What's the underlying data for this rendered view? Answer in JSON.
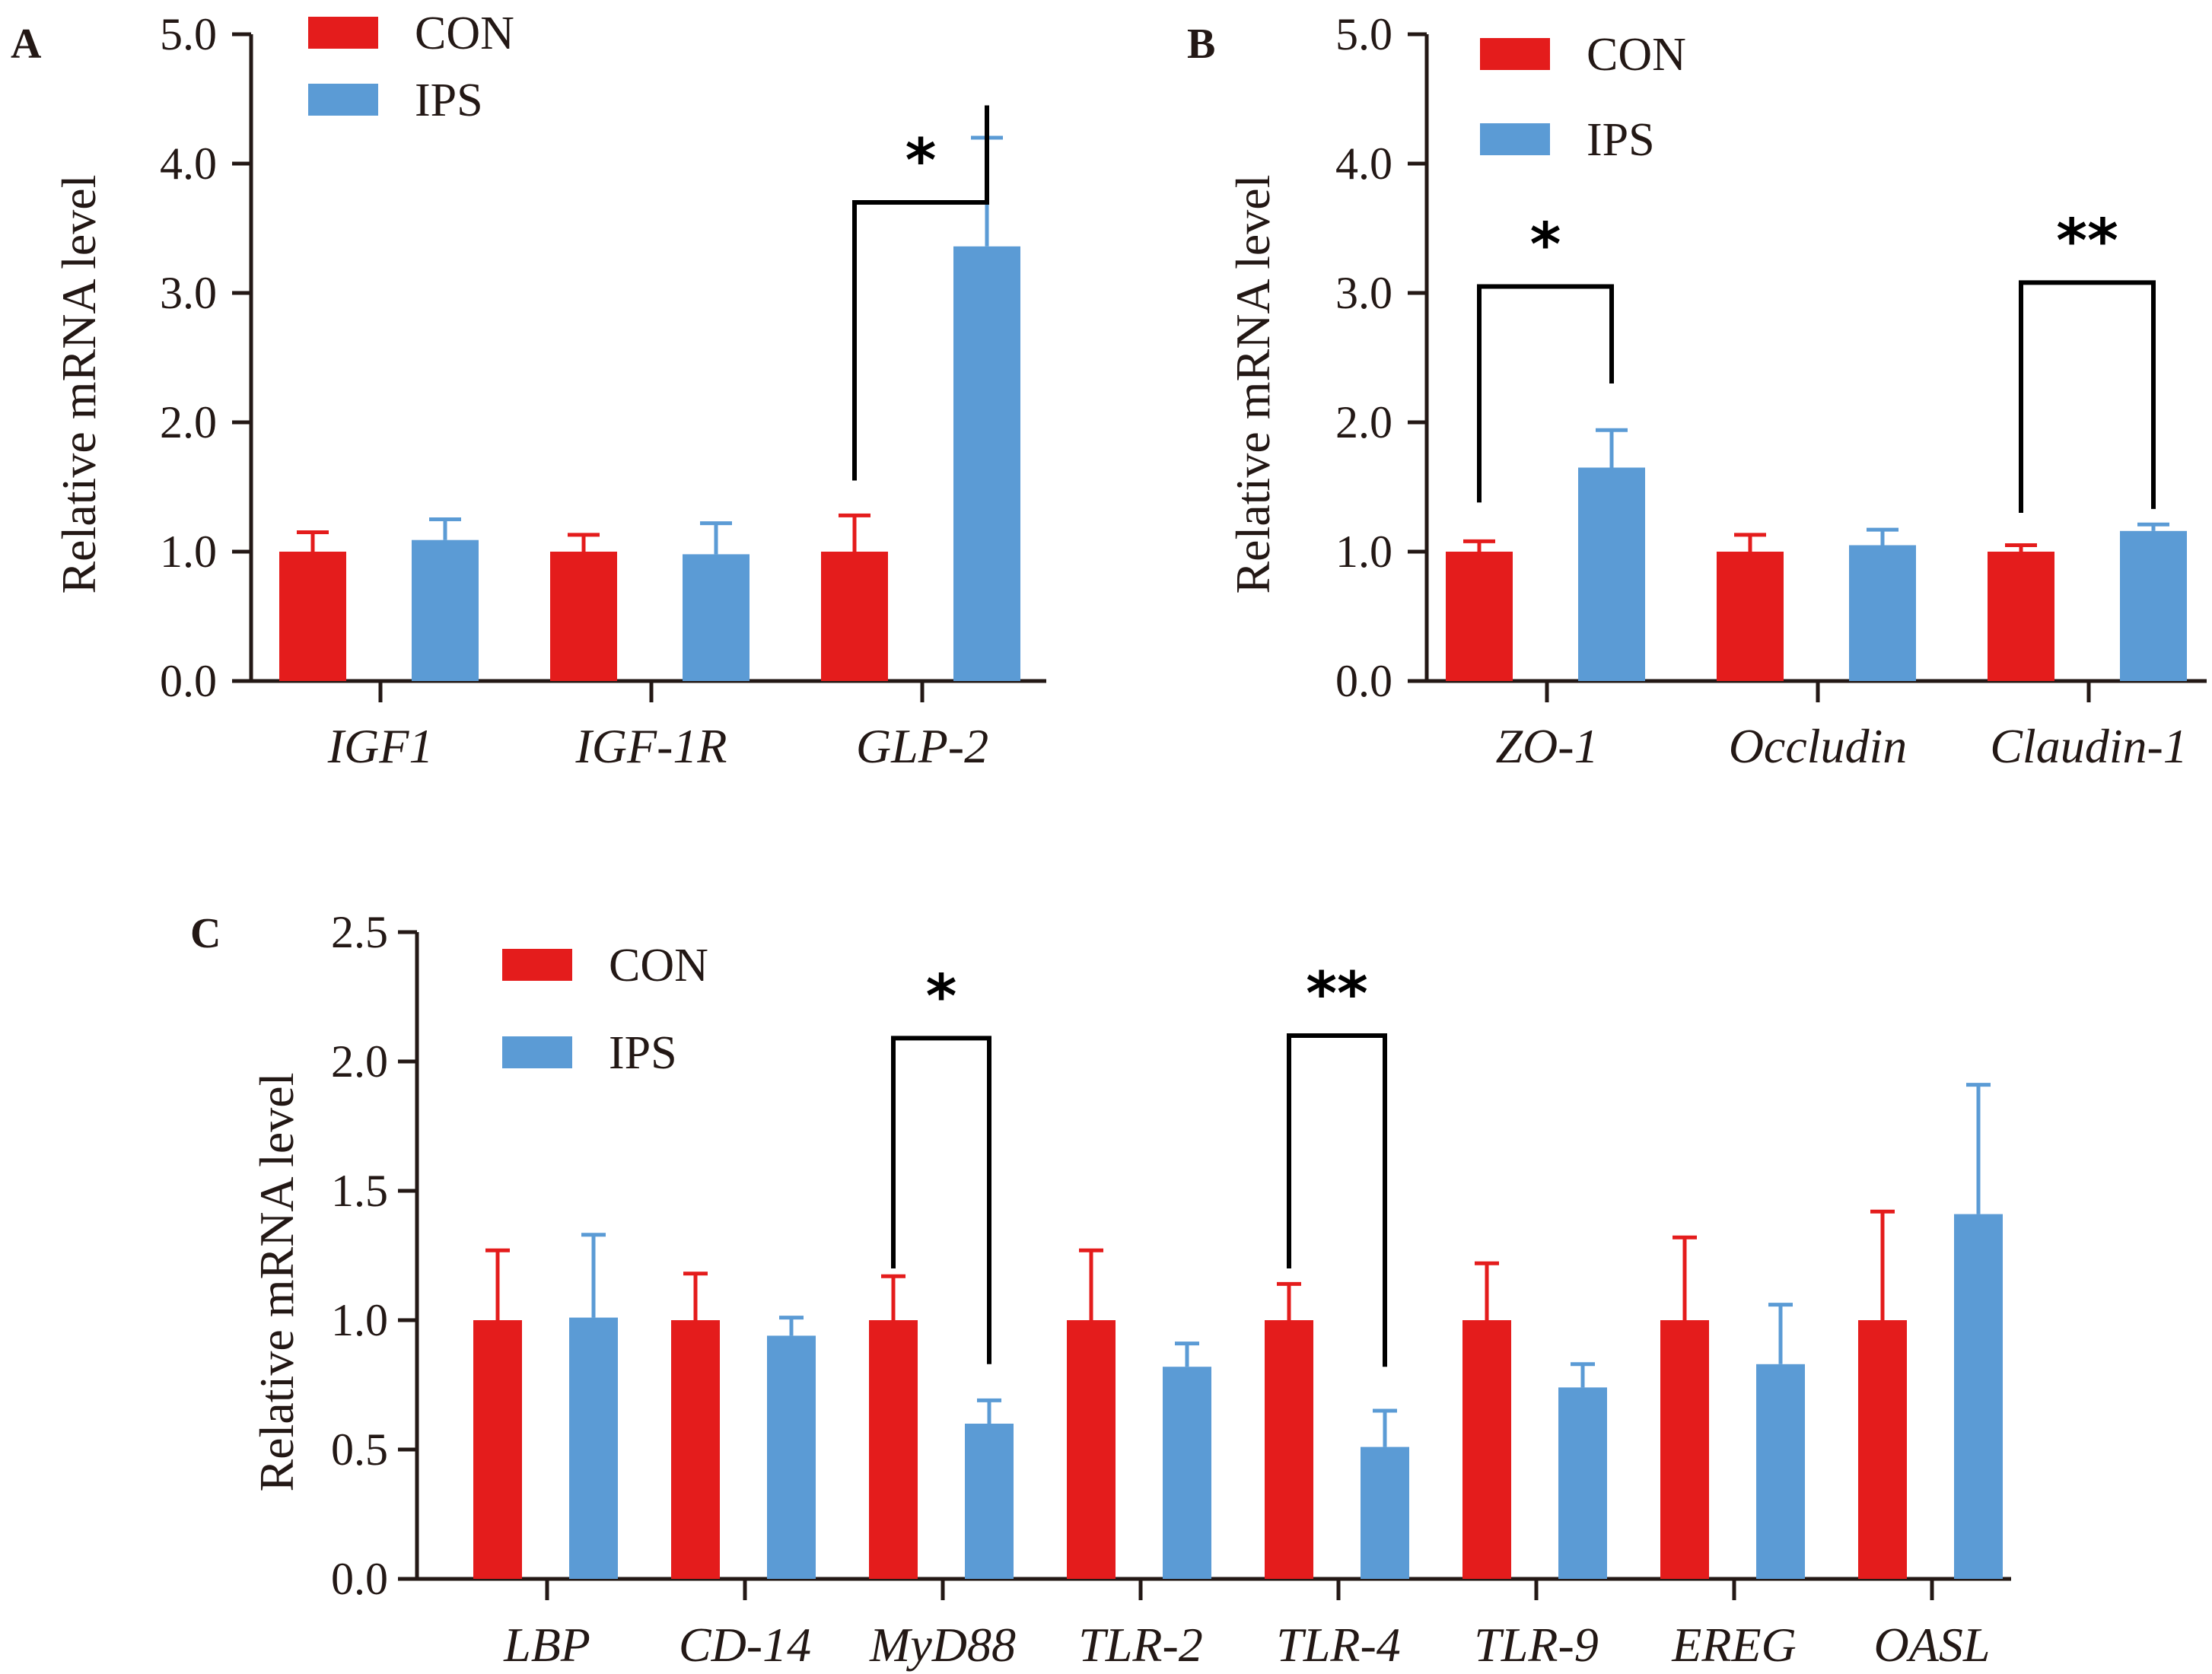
{
  "colors": {
    "con": "#e41c1c",
    "ips": "#5b9bd5",
    "axis": "#231815",
    "bracket": "#000000"
  },
  "chart_data": [
    {
      "panel": "A",
      "type": "bar",
      "ylabel": "Relative mRNA level",
      "ylim": [
        0,
        5
      ],
      "yticks": [
        "0.0",
        "1.0",
        "2.0",
        "3.0",
        "4.0",
        "5.0"
      ],
      "categories": [
        "IGF1",
        "IGF-1R",
        "GLP-2"
      ],
      "series": [
        {
          "name": "CON",
          "values": [
            1.0,
            1.0,
            1.0
          ],
          "errors": [
            0.15,
            0.13,
            0.28
          ]
        },
        {
          "name": "IPS",
          "values": [
            1.09,
            0.98,
            3.36
          ],
          "errors": [
            0.16,
            0.24,
            0.84
          ]
        }
      ],
      "significance": [
        {
          "category": "GLP-2",
          "label": "*",
          "top": 3.7,
          "left_end": 1.55,
          "right_end": 4.45
        }
      ]
    },
    {
      "panel": "B",
      "type": "bar",
      "ylabel": "Relative mRNA level",
      "ylim": [
        0,
        5
      ],
      "yticks": [
        "0.0",
        "1.0",
        "2.0",
        "3.0",
        "4.0",
        "5.0"
      ],
      "categories": [
        "ZO-1",
        "Occludin",
        "Claudin-1"
      ],
      "series": [
        {
          "name": "CON",
          "values": [
            1.0,
            1.0,
            1.0
          ],
          "errors": [
            0.08,
            0.13,
            0.05
          ]
        },
        {
          "name": "IPS",
          "values": [
            1.65,
            1.05,
            1.16
          ],
          "errors": [
            0.29,
            0.12,
            0.05
          ]
        }
      ],
      "significance": [
        {
          "category": "ZO-1",
          "label": "*",
          "top": 3.05,
          "left_end": 1.38,
          "right_end": 2.3
        },
        {
          "category": "Claudin-1",
          "label": "**",
          "top": 3.08,
          "left_end": 1.3,
          "right_end": 1.33
        }
      ]
    },
    {
      "panel": "C",
      "type": "bar",
      "ylabel": "Relative mRNA level",
      "ylim": [
        0,
        2.5
      ],
      "yticks": [
        "0.0",
        "0.5",
        "1.0",
        "1.5",
        "2.0",
        "2.5"
      ],
      "categories": [
        "LBP",
        "CD-14",
        "MyD88",
        "TLR-2",
        "TLR-4",
        "TLR-9",
        "EREG",
        "OASL"
      ],
      "series": [
        {
          "name": "CON",
          "values": [
            1.0,
            1.0,
            1.0,
            1.0,
            1.0,
            1.0,
            1.0,
            1.0
          ],
          "errors": [
            0.27,
            0.18,
            0.17,
            0.27,
            0.14,
            0.22,
            0.32,
            0.42
          ]
        },
        {
          "name": "IPS",
          "values": [
            1.01,
            0.94,
            0.6,
            0.82,
            0.51,
            0.74,
            0.83,
            1.41
          ],
          "errors": [
            0.32,
            0.07,
            0.09,
            0.09,
            0.14,
            0.09,
            0.23,
            0.5
          ]
        }
      ],
      "significance": [
        {
          "category": "MyD88",
          "label": "*",
          "top": 2.09,
          "left_end": 1.2,
          "right_end": 0.83
        },
        {
          "category": "TLR-4",
          "label": "**",
          "top": 2.1,
          "left_end": 1.2,
          "right_end": 0.82
        }
      ]
    }
  ]
}
